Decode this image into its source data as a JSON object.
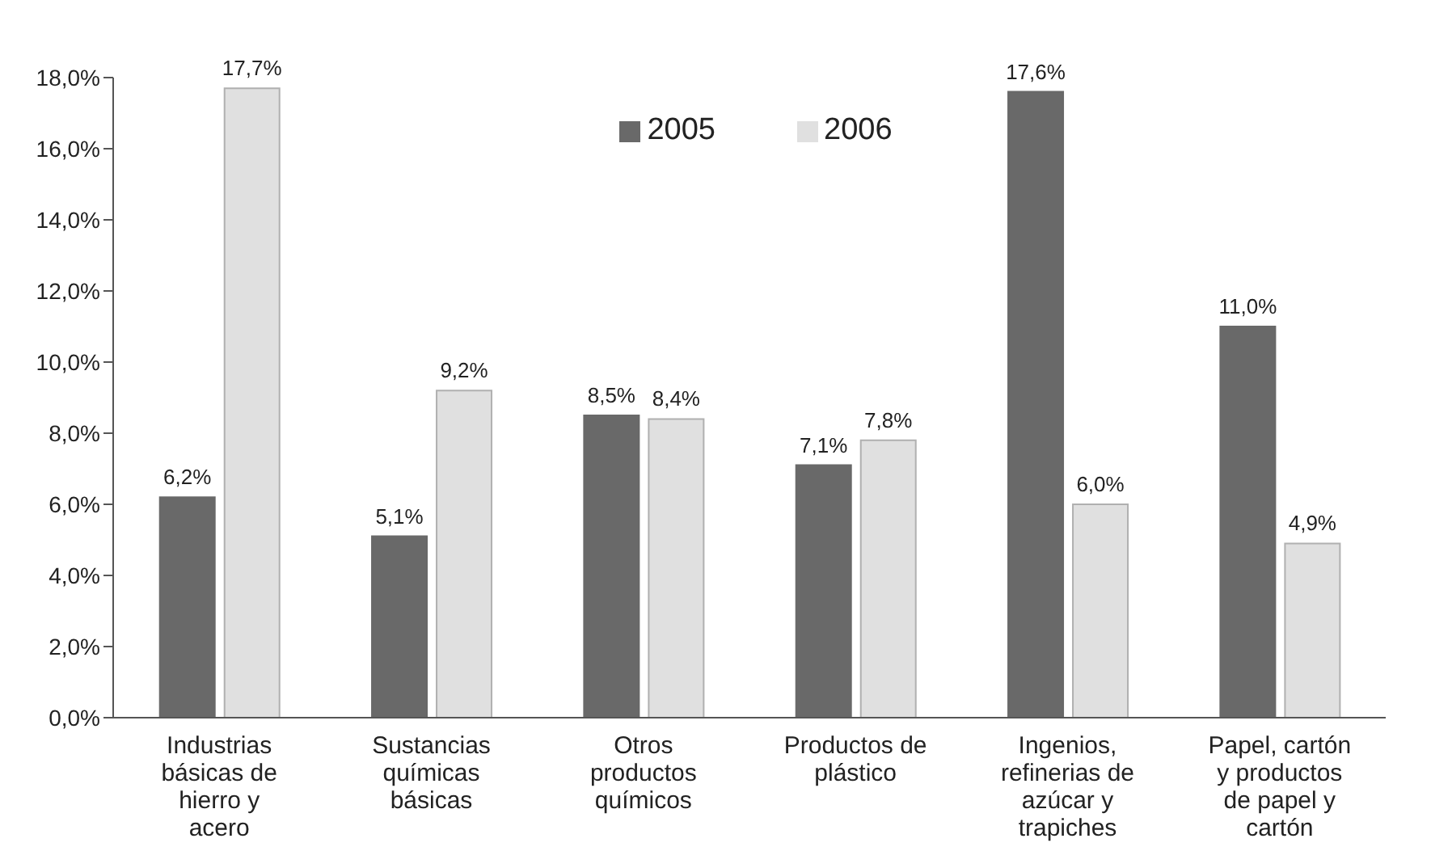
{
  "chart_data": {
    "type": "bar",
    "categories": [
      "Industrias básicas de hierro y acero",
      "Sustancias químicas básicas",
      "Otros productos químicos",
      "Productos de plástico",
      "Ingenios, refinerias de azúcar y trapiches",
      "Papel, cartón y productos de papel y cartón"
    ],
    "series": [
      {
        "name": "2005",
        "color": "#696969",
        "values": [
          6.2,
          5.1,
          8.5,
          7.1,
          17.6,
          11.0
        ],
        "value_labels": [
          "6,2%",
          "5,1%",
          "8,5%",
          "7,1%",
          "17,6%",
          "11,0%"
        ]
      },
      {
        "name": "2006",
        "color": "#e0e0e0",
        "values": [
          17.7,
          9.2,
          8.4,
          7.8,
          6.0,
          4.9
        ],
        "value_labels": [
          "17,7%",
          "9,2%",
          "8,4%",
          "7,8%",
          "6,0%",
          "4,9%"
        ]
      }
    ],
    "ylim": [
      0,
      18
    ],
    "yticks": [
      {
        "value": 0,
        "label": "0,0%"
      },
      {
        "value": 2,
        "label": "2,0%"
      },
      {
        "value": 4,
        "label": "4,0%"
      },
      {
        "value": 6,
        "label": "6,0%"
      },
      {
        "value": 8,
        "label": "8,0%"
      },
      {
        "value": 10,
        "label": "10,0%"
      },
      {
        "value": 12,
        "label": "12,0%"
      },
      {
        "value": 14,
        "label": "14,0%"
      },
      {
        "value": 16,
        "label": "16,0%"
      },
      {
        "value": 18,
        "label": "18,0%"
      }
    ],
    "grid": false,
    "legend": "top"
  }
}
